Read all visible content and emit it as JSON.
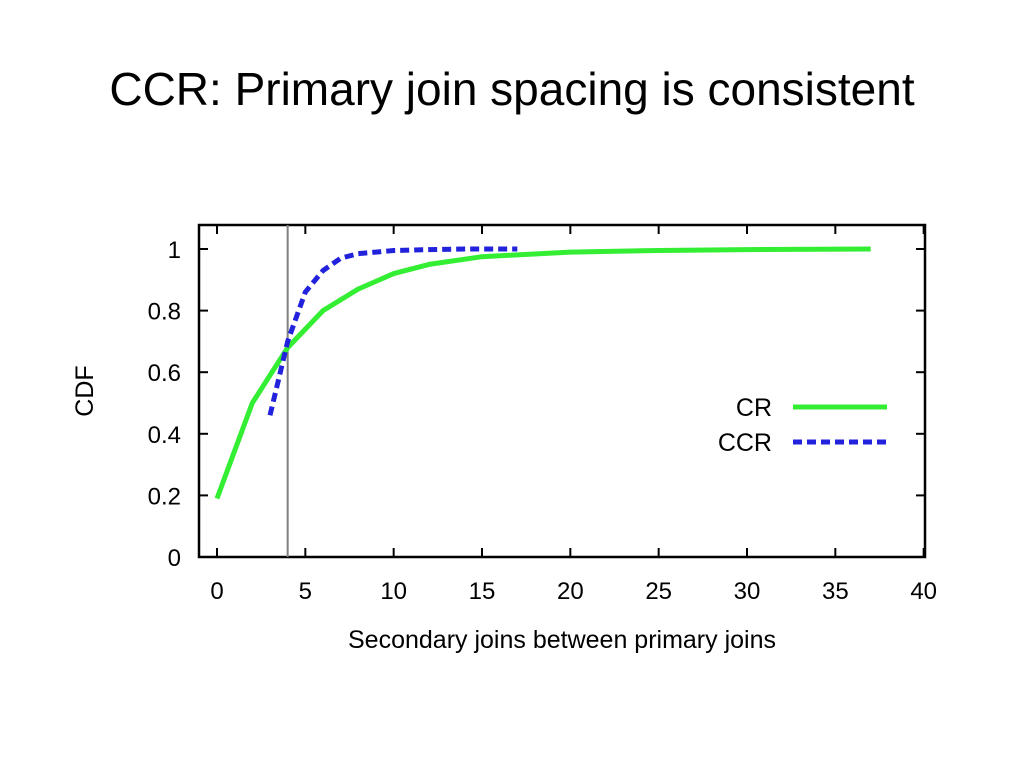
{
  "slide": {
    "title": "CCR: Primary join spacing is consistent"
  },
  "chart_data": {
    "type": "line",
    "xlabel": "Secondary joins between primary joins",
    "ylabel": "CDF",
    "xlim": [
      -1,
      40
    ],
    "ylim": [
      0,
      1.08
    ],
    "x_ticks": [
      0,
      5,
      10,
      15,
      20,
      25,
      30,
      35,
      40
    ],
    "y_ticks": [
      0,
      0.2,
      0.4,
      0.6,
      0.8,
      1
    ],
    "x_tick_labels": [
      "0",
      "5",
      "10",
      "15",
      "20",
      "25",
      "30",
      "35",
      "40"
    ],
    "y_tick_labels": [
      "0",
      "0.2",
      "0.4",
      "0.6",
      "0.8",
      "1"
    ],
    "reference_line_x": 4,
    "legend_position": "right",
    "grid": false,
    "series": [
      {
        "name": "CR",
        "color": "#33ee33",
        "dash": "solid",
        "x": [
          0,
          2,
          4,
          6,
          8,
          10,
          12,
          15,
          20,
          25,
          30,
          37
        ],
        "y": [
          0.19,
          0.5,
          0.68,
          0.8,
          0.87,
          0.92,
          0.95,
          0.975,
          0.99,
          0.995,
          0.998,
          1.0
        ]
      },
      {
        "name": "CCR",
        "color": "#2222dd",
        "dash": "dashed",
        "x": [
          3,
          4,
          5,
          6,
          7,
          8,
          9,
          10,
          12,
          14,
          17
        ],
        "y": [
          0.46,
          0.7,
          0.86,
          0.93,
          0.97,
          0.985,
          0.99,
          0.995,
          0.998,
          1.0,
          1.0
        ]
      }
    ]
  }
}
